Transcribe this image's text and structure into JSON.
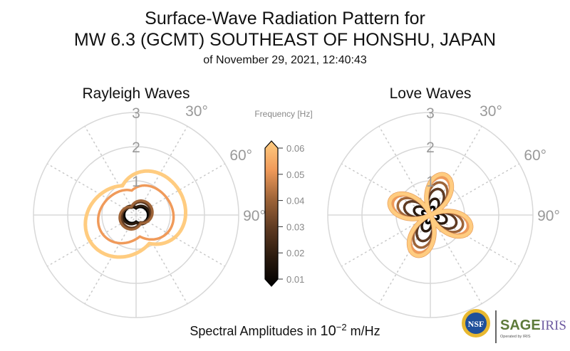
{
  "chart_data": [
    {
      "type": "polar",
      "title": "Rayleigh Waves",
      "r_ticks": [
        "1",
        "2",
        "3"
      ],
      "rlim": [
        0,
        3
      ],
      "theta_ticks": [
        "30°",
        "60°",
        "90°"
      ],
      "theta_zero": "north",
      "theta_direction": "clockwise",
      "grid": true,
      "series": [
        {
          "frequency": 0.01,
          "shape": "two-lobe",
          "max_r": 0.35,
          "orientation_deg": 90
        },
        {
          "frequency": 0.02,
          "shape": "two-lobe",
          "max_r": 0.4,
          "orientation_deg": 90
        },
        {
          "frequency": 0.03,
          "shape": "two-lobe",
          "max_r": 0.45,
          "orientation_deg": 60
        },
        {
          "frequency": 0.04,
          "shape": "two-lobe",
          "max_r": 0.5,
          "orientation_deg": 60
        },
        {
          "frequency": 0.05,
          "shape": "oval",
          "max_r": 1.1,
          "orientation_deg": 80
        },
        {
          "frequency": 0.06,
          "shape": "oval",
          "max_r": 1.5,
          "orientation_deg": 65
        }
      ]
    },
    {
      "type": "polar",
      "title": "Love Waves",
      "r_ticks": [
        "1",
        "2",
        "3"
      ],
      "rlim": [
        0,
        3
      ],
      "theta_ticks": [
        "30°",
        "60°",
        "90°"
      ],
      "theta_zero": "north",
      "theta_direction": "clockwise",
      "grid": true,
      "series": [
        {
          "frequency": 0.01,
          "shape": "four-lobe",
          "max_r": 0.25,
          "orientation_deg": 20
        },
        {
          "frequency": 0.02,
          "shape": "four-lobe",
          "max_r": 0.5,
          "orientation_deg": 20
        },
        {
          "frequency": 0.03,
          "shape": "four-lobe",
          "max_r": 0.8,
          "orientation_deg": 20
        },
        {
          "frequency": 0.04,
          "shape": "four-lobe",
          "max_r": 1.0,
          "orientation_deg": 20
        },
        {
          "frequency": 0.05,
          "shape": "four-lobe",
          "max_r": 1.15,
          "orientation_deg": 20
        },
        {
          "frequency": 0.06,
          "shape": "four-lobe",
          "max_r": 1.25,
          "orientation_deg": 20
        }
      ]
    }
  ],
  "titles": {
    "line1": "Surface-Wave Radiation Pattern for",
    "line2": "MW 6.3 (GCMT) SOUTHEAST OF HONSHU, JAPAN",
    "line3": "of November 29, 2021, 12:40:43"
  },
  "colorbar": {
    "label": "Frequency [Hz]",
    "ticks": [
      "0.06",
      "0.05",
      "0.04",
      "0.03",
      "0.02",
      "0.01"
    ],
    "range": [
      0.01,
      0.06
    ],
    "colormap": [
      "#000000",
      "#3a2414",
      "#7a4a2a",
      "#c07a4a",
      "#f6a05e",
      "#ffcc80"
    ]
  },
  "xlabel": {
    "prefix": "Spectral Amplitudes in ",
    "base": "10",
    "exponent": "−2",
    "suffix": " m/Hz"
  },
  "logos": {
    "nsf": "NSF",
    "sage": "SAGE",
    "iris": "IRIS",
    "operated": "Operated by IRIS"
  }
}
